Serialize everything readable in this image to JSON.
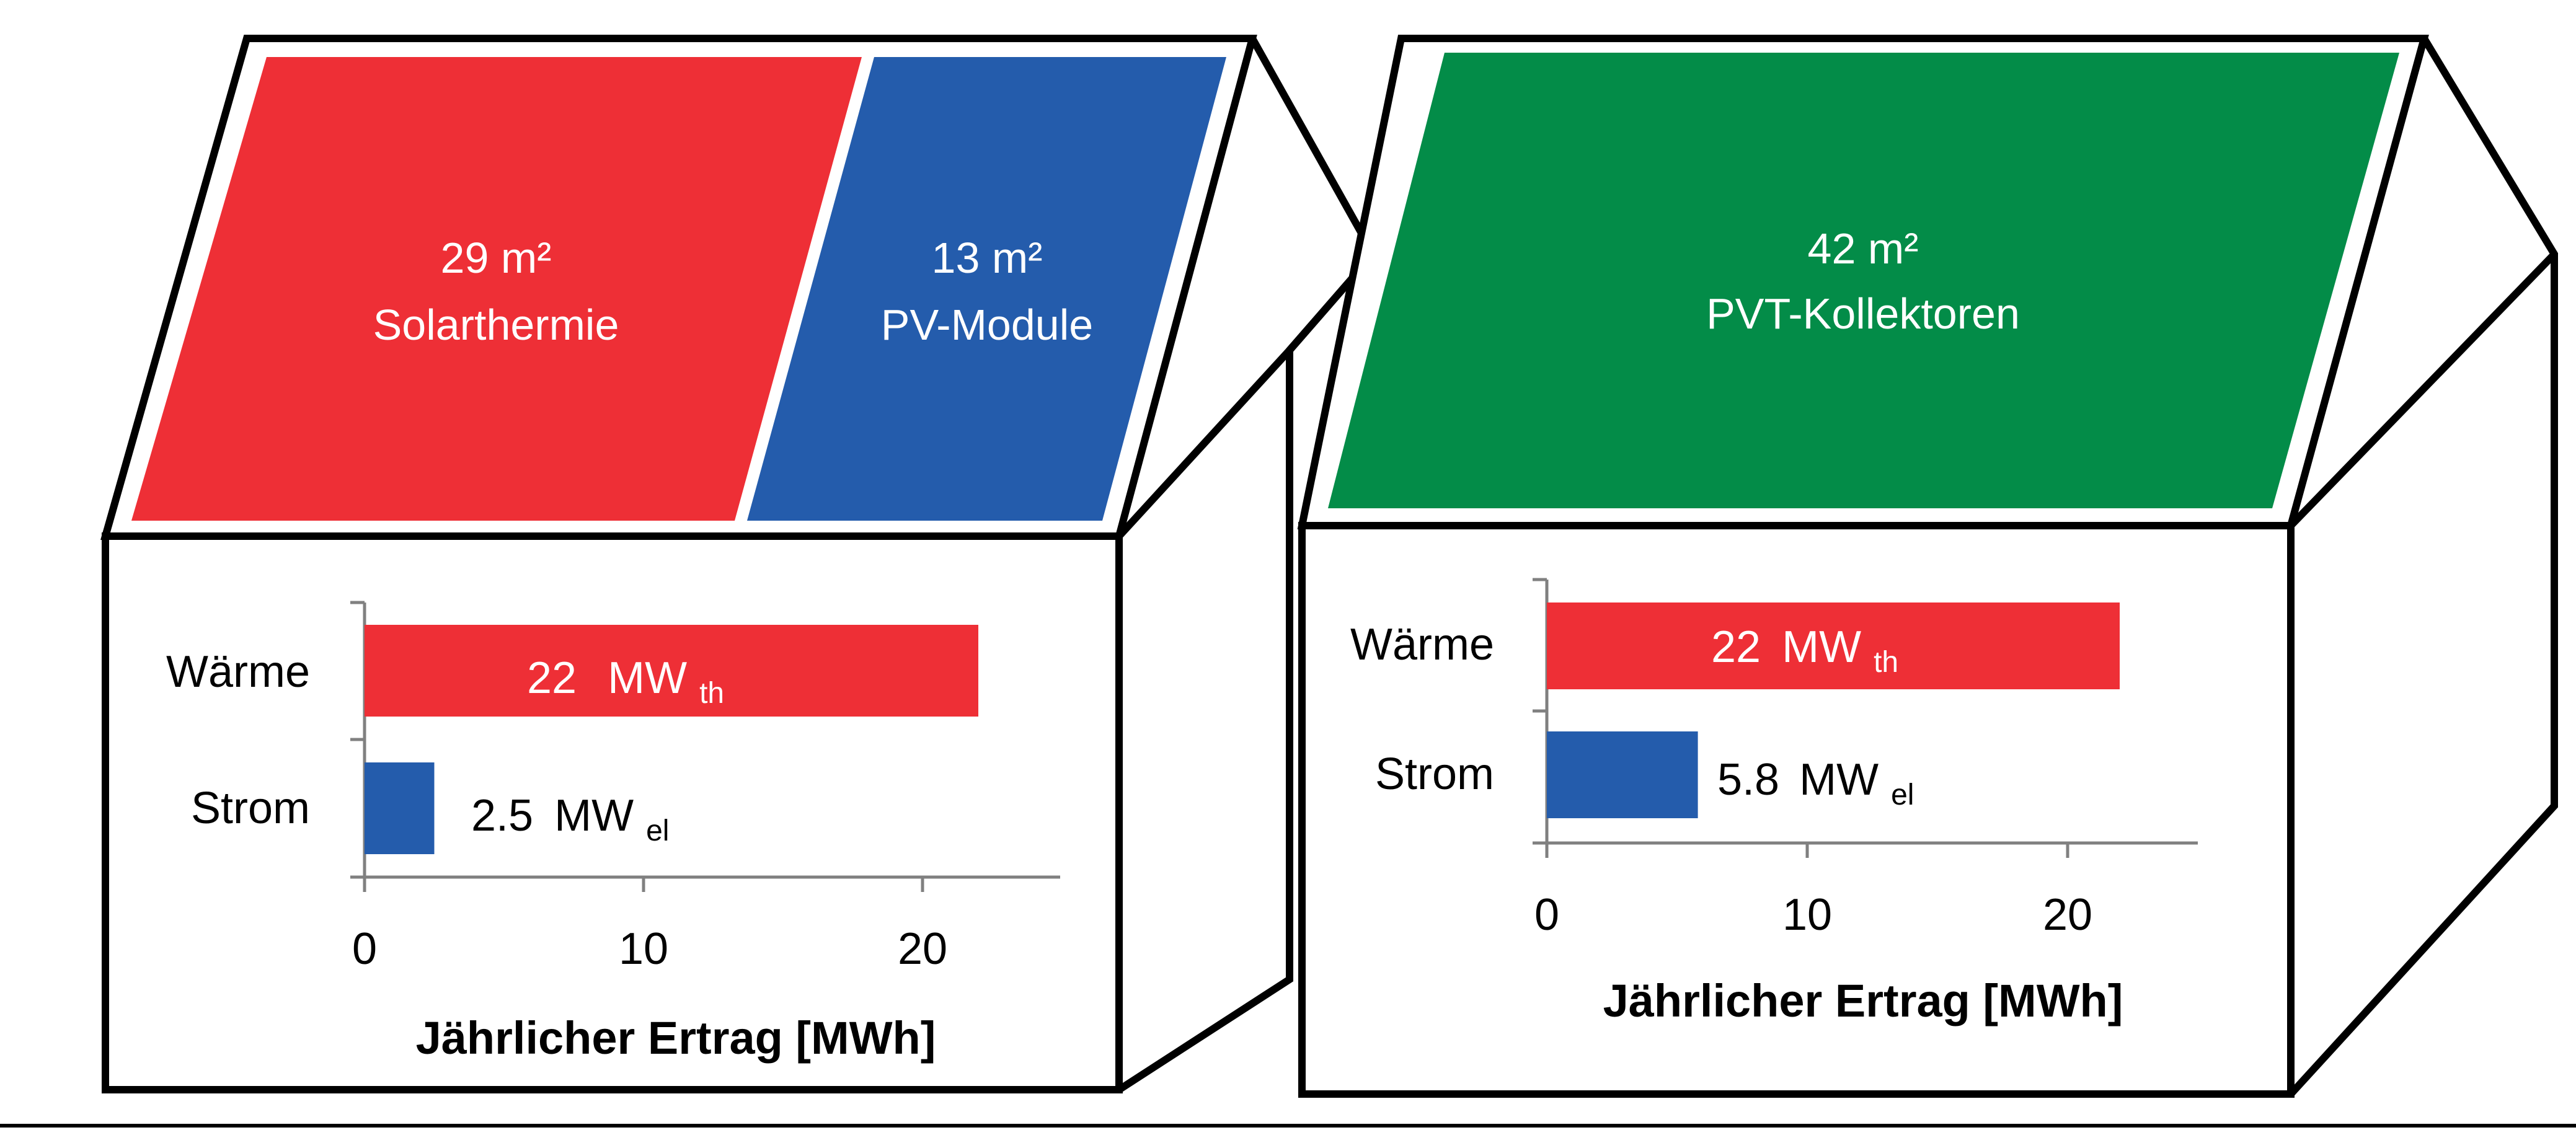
{
  "colors": {
    "thermal": "#ee2f36",
    "pv": "#245cac",
    "pvt": "#038c48",
    "outline": "#000000",
    "axis": "#808080"
  },
  "houses": [
    {
      "roof": [
        {
          "area": "29 m²",
          "label": "Solarthermie",
          "color": "#ee2f36"
        },
        {
          "area": "13 m²",
          "label": "PV-Module",
          "color": "#245cac"
        }
      ]
    },
    {
      "roof": [
        {
          "area": "42 m²",
          "label": "PVT-Kollektoren",
          "color": "#038c48"
        }
      ]
    }
  ],
  "chart_data": [
    {
      "type": "bar",
      "orientation": "horizontal",
      "categories": [
        "Wärme",
        "Strom"
      ],
      "values": [
        22,
        2.5
      ],
      "value_labels": [
        {
          "number": "22",
          "unit": "MW",
          "sub": "th"
        },
        {
          "number": "2.5",
          "unit": "MW",
          "sub": "el"
        }
      ],
      "bar_colors": [
        "#ee2f36",
        "#245cac"
      ],
      "xlabel": "Jährlicher Ertrag [MWh]",
      "xlim": [
        0,
        25
      ],
      "xticks": [
        "0",
        "10",
        "20"
      ]
    },
    {
      "type": "bar",
      "orientation": "horizontal",
      "categories": [
        "Wärme",
        "Strom"
      ],
      "values": [
        22,
        5.8
      ],
      "value_labels": [
        {
          "number": "22",
          "unit": "MW",
          "sub": "th"
        },
        {
          "number": "5.8",
          "unit": "MW",
          "sub": "el"
        }
      ],
      "bar_colors": [
        "#ee2f36",
        "#245cac"
      ],
      "xlabel": "Jährlicher Ertrag [MWh]",
      "xlim": [
        0,
        25
      ],
      "xticks": [
        "0",
        "10",
        "20"
      ]
    }
  ]
}
